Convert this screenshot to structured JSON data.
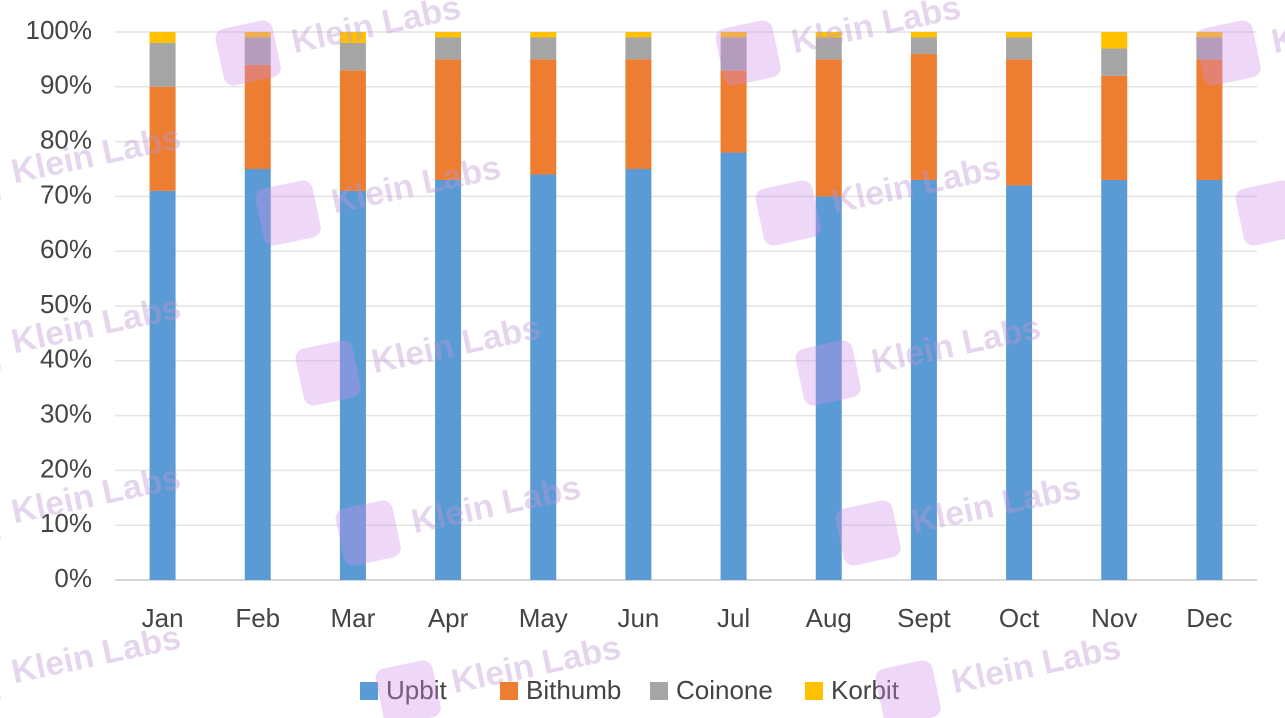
{
  "chart_data": {
    "type": "stacked_bar",
    "categories": [
      "Jan",
      "Feb",
      "Mar",
      "Apr",
      "May",
      "Jun",
      "Jul",
      "Aug",
      "Sept",
      "Oct",
      "Nov",
      "Dec"
    ],
    "series": [
      {
        "name": "Upbit",
        "color": "#5b9bd5",
        "values": [
          71,
          75,
          71,
          73,
          74,
          75,
          78,
          70,
          73,
          72,
          73,
          73
        ]
      },
      {
        "name": "Bithumb",
        "color": "#ed7d31",
        "values": [
          19,
          19,
          22,
          22,
          21,
          20,
          15,
          25,
          23,
          23,
          19,
          22
        ]
      },
      {
        "name": "Coinone",
        "color": "#a5a5a5",
        "values": [
          8,
          5,
          5,
          4,
          4,
          4,
          6,
          4,
          3,
          4,
          5,
          4
        ]
      },
      {
        "name": "Korbit",
        "color": "#ffc000",
        "values": [
          2,
          1,
          2,
          1,
          1,
          1,
          1,
          1,
          1,
          1,
          3,
          1
        ]
      }
    ],
    "ylim": [
      0,
      100
    ],
    "yticks": [
      {
        "value": 0,
        "label": "0%"
      },
      {
        "value": 10,
        "label": "10%"
      },
      {
        "value": 20,
        "label": "20%"
      },
      {
        "value": 30,
        "label": "30%"
      },
      {
        "value": 40,
        "label": "40%"
      },
      {
        "value": 50,
        "label": "50%"
      },
      {
        "value": 60,
        "label": "60%"
      },
      {
        "value": 70,
        "label": "70%"
      },
      {
        "value": 80,
        "label": "80%"
      },
      {
        "value": 90,
        "label": "90%"
      },
      {
        "value": 100,
        "label": "100%"
      }
    ],
    "grid": true,
    "legend": "bottom",
    "watermark": "Klein Labs"
  }
}
